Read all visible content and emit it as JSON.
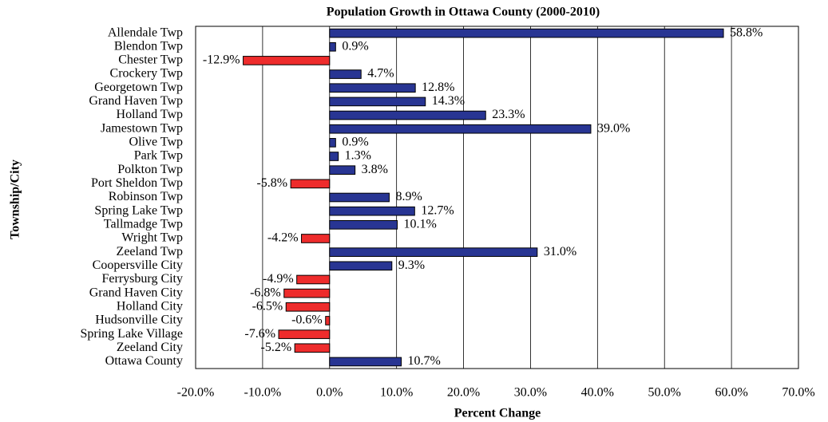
{
  "chart_data": {
    "type": "hbar",
    "title": "Population Growth in Ottawa County (2000-2010)",
    "x_label": "Percent Change",
    "y_label": "Township/City",
    "categories": [
      "Allendale Twp",
      "Blendon Twp",
      "Chester Twp",
      "Crockery Twp",
      "Georgetown Twp",
      "Grand Haven Twp",
      "Holland Twp",
      "Jamestown Twp",
      "Olive Twp",
      "Park Twp",
      "Polkton Twp",
      "Port Sheldon Twp",
      "Robinson Twp",
      "Spring Lake Twp",
      "Tallmadge Twp",
      "Wright Twp",
      "Zeeland Twp",
      "Coopersville City",
      "Ferrysburg City",
      "Grand Haven City",
      "Holland City",
      "Hudsonville City",
      "Spring Lake Village",
      "Zeeland City",
      "Ottawa County"
    ],
    "values": [
      58.8,
      0.9,
      -12.9,
      4.7,
      12.8,
      14.3,
      23.3,
      39.0,
      0.9,
      1.3,
      3.8,
      -5.8,
      8.9,
      12.7,
      10.1,
      -4.2,
      31.0,
      9.3,
      -4.9,
      -6.8,
      -6.5,
      -0.6,
      -7.6,
      -5.2,
      10.7
    ],
    "value_labels": [
      "58.8%",
      "0.9%",
      "-12.9%",
      "4.7%",
      "12.8%",
      "14.3%",
      "23.3%",
      "39.0%",
      "0.9%",
      "1.3%",
      "3.8%",
      "-5.8%",
      "8.9%",
      "12.7%",
      "10.1%",
      "-4.2%",
      "31.0%",
      "9.3%",
      "-4.9%",
      "-6.8%",
      "-6.5%",
      "-0.6%",
      "-7.6%",
      "-5.2%",
      "10.7%"
    ],
    "positive_color": "#283593",
    "negative_color": "#ee2c2c",
    "xlim": [
      -20,
      70
    ],
    "xticks": [
      {
        "value": -20,
        "label": "-20.0%"
      },
      {
        "value": -10,
        "label": "-10.0%"
      },
      {
        "value": 0,
        "label": "0.0%"
      },
      {
        "value": 10,
        "label": "10.0%"
      },
      {
        "value": 20,
        "label": "20.0%"
      },
      {
        "value": 30,
        "label": "30.0%"
      },
      {
        "value": 40,
        "label": "40.0%"
      },
      {
        "value": 50,
        "label": "50.0%"
      },
      {
        "value": 60,
        "label": "60.0%"
      },
      {
        "value": 70,
        "label": "70.0%"
      }
    ],
    "grid": true
  }
}
